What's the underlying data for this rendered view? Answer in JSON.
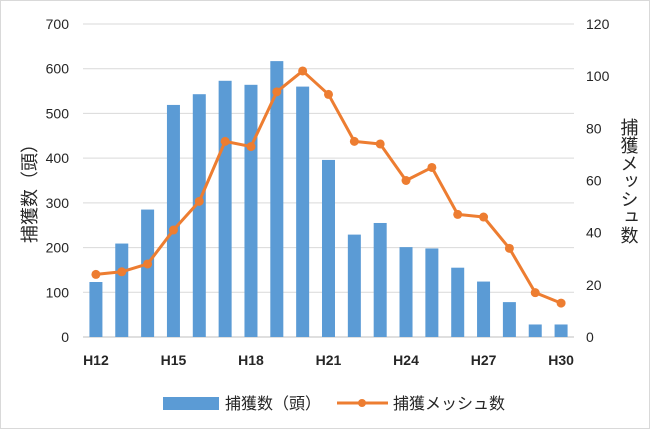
{
  "chart_data": {
    "type": "bar",
    "categories": [
      "H12",
      "H13",
      "H14",
      "H15",
      "H16",
      "H17",
      "H18",
      "H19",
      "H20",
      "H21",
      "H22",
      "H23",
      "H24",
      "H25",
      "H26",
      "H27",
      "H28",
      "H29",
      "H30"
    ],
    "x_tick_labels": [
      "H12",
      "H15",
      "H18",
      "H21",
      "H24",
      "H27",
      "H30"
    ],
    "series": [
      {
        "name": "捕獲数（頭）",
        "type": "bar",
        "axis": "left",
        "color": "#5b9bd5",
        "values": [
          123,
          209,
          285,
          519,
          543,
          573,
          564,
          617,
          560,
          396,
          229,
          255,
          201,
          198,
          155,
          124,
          78,
          28,
          28
        ]
      },
      {
        "name": "捕獲メッシュ数",
        "type": "line",
        "axis": "right",
        "color": "#ed7d31",
        "values": [
          24,
          25,
          28,
          41,
          52,
          75,
          73,
          94,
          102,
          93,
          75,
          74,
          60,
          65,
          47,
          46,
          34,
          17,
          13
        ]
      }
    ],
    "y_left": {
      "label": "捕獲数（頭）",
      "min": 0,
      "max": 700,
      "step": 100
    },
    "y_right": {
      "label": "捕獲メッシュ数",
      "min": 0,
      "max": 120,
      "step": 20
    },
    "grid": true,
    "legend_position": "bottom"
  }
}
